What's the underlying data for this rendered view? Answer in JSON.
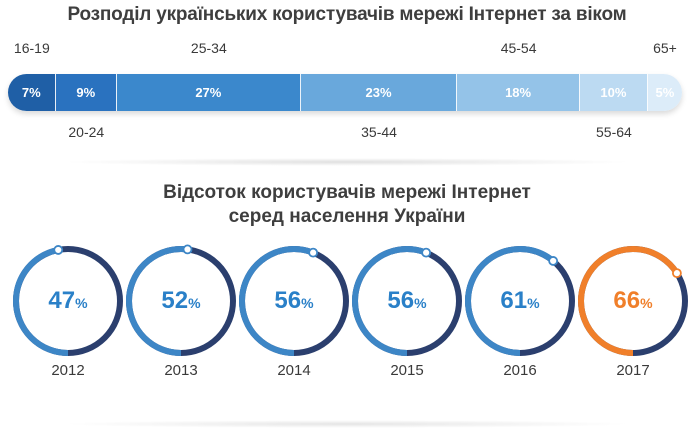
{
  "colors": {
    "text": "#3e3e3e",
    "ring_track": "#2b3f6e",
    "ring_fill": "#3d86c6",
    "highlight": "#f07f2a",
    "pct_text": "#2a80c8"
  },
  "chart_data": [
    {
      "type": "bar",
      "orientation": "horizontal-stacked",
      "title": "Розподіл українських користувачів мережі Інтернет за віком",
      "categories": [
        "16-19",
        "20-24",
        "25-34",
        "35-44",
        "45-54",
        "55-64",
        "65+"
      ],
      "values": [
        7,
        9,
        27,
        23,
        18,
        10,
        5
      ],
      "value_labels": [
        "7%",
        "9%",
        "27%",
        "23%",
        "18%",
        "10%",
        "5%"
      ],
      "segment_colors": [
        "#1f5fa6",
        "#2a72bf",
        "#3b88cc",
        "#69a8dc",
        "#94c3e8",
        "#bcdaf2",
        "#dcecf9"
      ],
      "label_positions": [
        "top",
        "bottom",
        "top",
        "bottom",
        "top",
        "bottom",
        "top"
      ]
    },
    {
      "type": "donut",
      "title": "Відсоток користувачів мережі Інтернет серед населення України",
      "title_lines": [
        "Відсоток користувачів мережі Інтернет",
        "серед населення України"
      ],
      "categories": [
        "2012",
        "2013",
        "2014",
        "2015",
        "2016",
        "2017"
      ],
      "values": [
        47,
        52,
        56,
        56,
        61,
        66
      ],
      "highlight_index": 5,
      "percent_sign": "%"
    }
  ]
}
